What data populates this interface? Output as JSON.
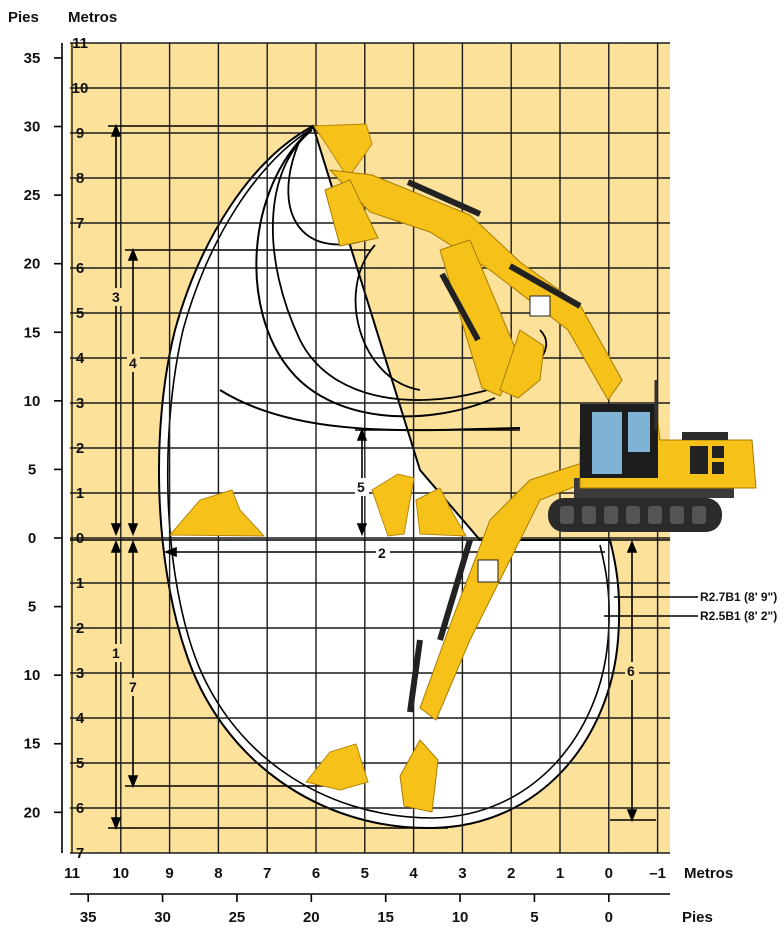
{
  "axis_labels": {
    "feet_top": "Pies",
    "meters_top": "Metros",
    "meters_bottom": "Metros",
    "feet_bottom": "Pies"
  },
  "left_feet_ticks": [
    "35",
    "30",
    "25",
    "20",
    "15",
    "10",
    "5",
    "0",
    "5",
    "10",
    "15",
    "20"
  ],
  "left_meter_ticks": [
    "11",
    "10",
    "9",
    "8",
    "7",
    "6",
    "5",
    "4",
    "3",
    "2",
    "1",
    "0",
    "1",
    "2",
    "3",
    "4",
    "5",
    "6",
    "7"
  ],
  "bottom_meter_ticks": [
    "11",
    "10",
    "9",
    "8",
    "7",
    "6",
    "5",
    "4",
    "3",
    "2",
    "1",
    "0",
    "–1"
  ],
  "bottom_feet_ticks": [
    "35",
    "30",
    "25",
    "20",
    "15",
    "10",
    "5",
    "0"
  ],
  "dimension_labels": [
    "1",
    "2",
    "3",
    "4",
    "5",
    "6",
    "7"
  ],
  "legend": {
    "outer": "R2.7B1 (8' 9\")",
    "inner": "R2.5B1 (8' 2\")"
  },
  "colors": {
    "background": "#fce19a",
    "envelope_fill": "#ffffff",
    "grid": "#1a1a1a",
    "machine_yellow": "#f6c21a",
    "machine_dark": "#2b2b2b",
    "cab_glass": "#7fb3d5"
  }
}
